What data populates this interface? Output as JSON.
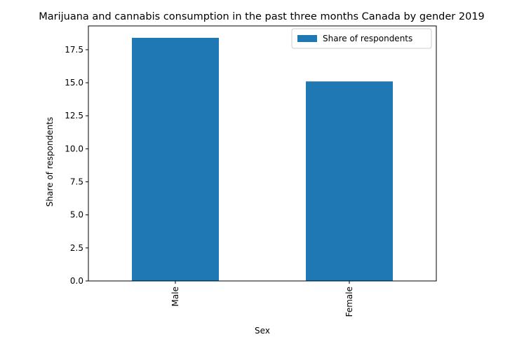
{
  "chart_data": {
    "type": "bar",
    "title": "Marijuana and cannabis consumption in the past three months Canada by gender 2019",
    "xlabel": "Sex",
    "ylabel": "Share of respondents",
    "categories": [
      "Male",
      "Female"
    ],
    "series": [
      {
        "name": "Share of respondents",
        "values": [
          18.4,
          15.1
        ],
        "color": "#1f77b4"
      }
    ],
    "ylim": [
      0,
      19.3
    ],
    "yticks": [
      "0.0",
      "2.5",
      "5.0",
      "7.5",
      "10.0",
      "12.5",
      "15.0",
      "17.5"
    ],
    "grid": false,
    "legend_position": "top-right"
  }
}
